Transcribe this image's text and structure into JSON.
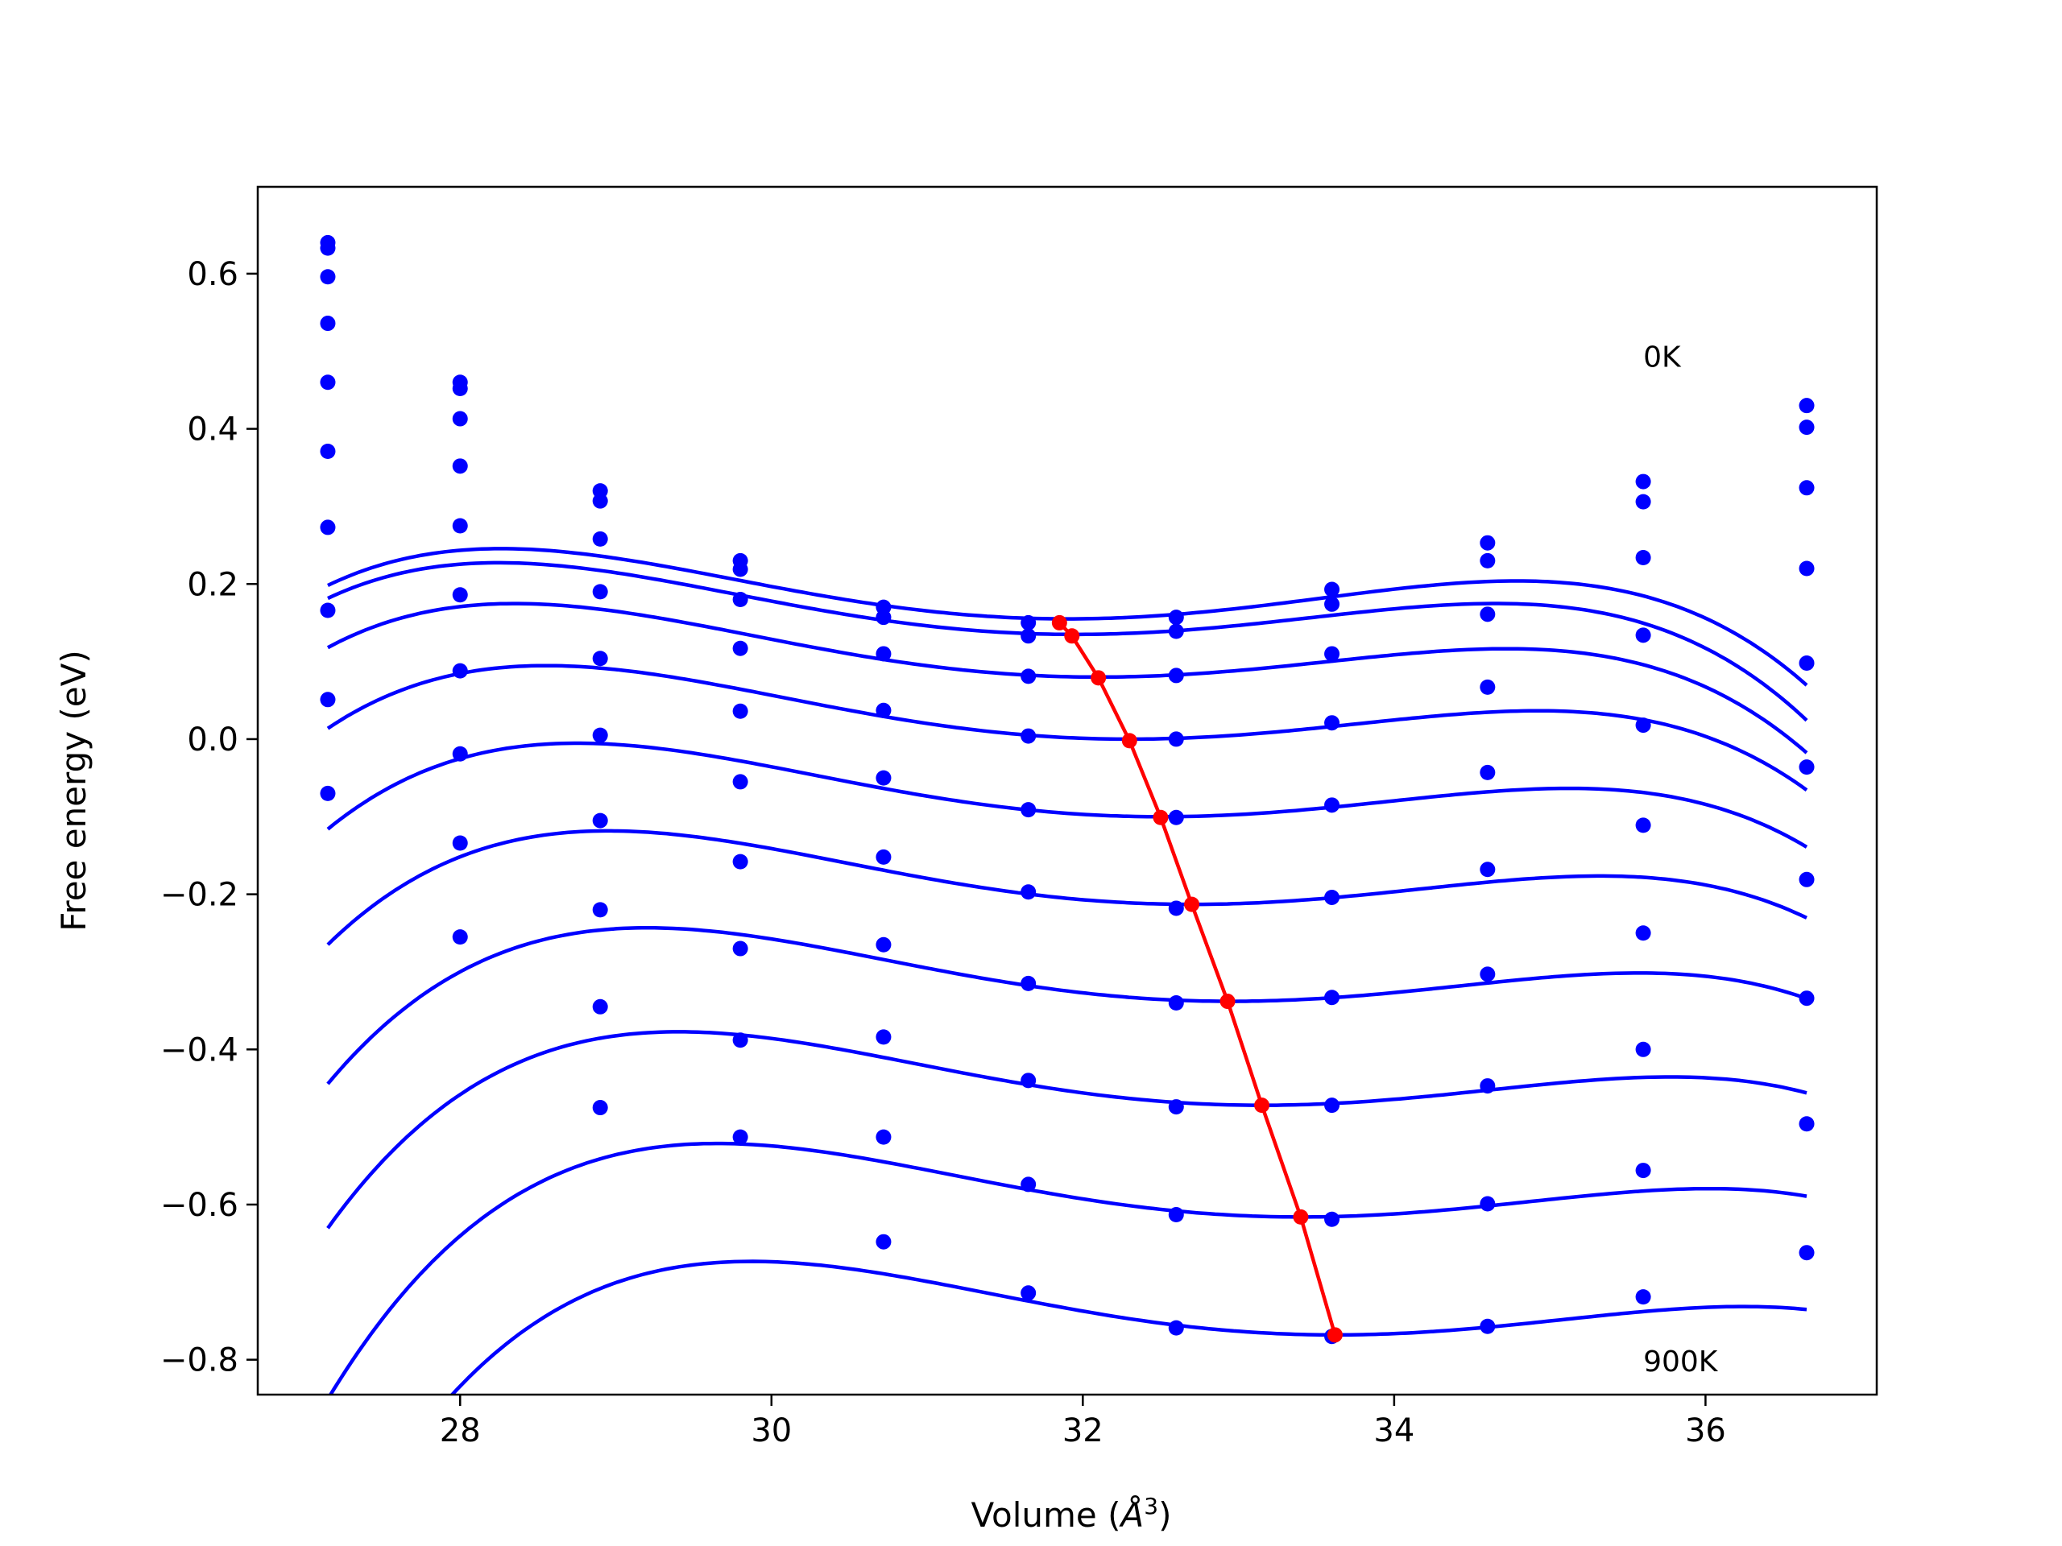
{
  "chart_data": {
    "type": "scatter",
    "title": "",
    "xlabel": "Volume",
    "xlabel_unit": "Å",
    "xlabel_exponent": "3",
    "ylabel": "Free energy (eV)",
    "xlim": [
      26.7,
      37.1
    ],
    "ylim": [
      -0.845,
      0.712
    ],
    "xticks": [
      28,
      30,
      32,
      34,
      36
    ],
    "xtick_labels": [
      "28",
      "30",
      "32",
      "34",
      "36"
    ],
    "yticks": [
      0.6,
      0.4,
      0.2,
      0.0,
      -0.2,
      -0.4,
      -0.6,
      -0.8
    ],
    "ytick_labels": [
      "0.6",
      "0.4",
      "0.2",
      "0.0",
      "−0.2",
      "−0.4",
      "−0.6",
      "−0.8"
    ],
    "grid": false,
    "annotations": [
      {
        "text": "0K",
        "x": 35.6,
        "y": 0.48
      },
      {
        "text": "900K",
        "x": 35.6,
        "y": -0.815
      }
    ],
    "colors": {
      "series": "#0000ff",
      "minima": "#ff0000"
    },
    "x": [
      27.15,
      28.0,
      28.9,
      29.8,
      30.72,
      31.65,
      32.6,
      33.6,
      34.6,
      35.6,
      36.65
    ],
    "series": [
      {
        "values": [
          0.64,
          0.46,
          0.32,
          0.23,
          0.17,
          0.15,
          0.157,
          0.193,
          0.253,
          0.332,
          0.43
        ],
        "fit": [
          0.155,
          31.9,
          0.0126,
          -0.0006,
          -0.0006
        ]
      },
      {
        "values": [
          0.633,
          0.452,
          0.307,
          0.219,
          0.157,
          0.133,
          0.139,
          0.174,
          0.23,
          0.306,
          0.402
        ],
        "fit": [
          0.135,
          31.95,
          0.012,
          -0.0008,
          -0.0006
        ]
      },
      {
        "values": [
          0.596,
          0.413,
          0.258,
          0.18,
          0.11,
          0.081,
          0.082,
          0.11,
          0.161,
          0.234,
          0.324
        ],
        "fit": [
          0.08,
          32.1,
          0.0118,
          -0.0009,
          -0.0006
        ]
      },
      {
        "values": [
          0.536,
          0.352,
          0.19,
          0.117,
          0.037,
          0.004,
          0.0,
          0.021,
          0.067,
          0.134,
          0.22
        ],
        "fit": [
          0.0,
          32.3,
          0.0118,
          -0.0009,
          -0.0006
        ]
      },
      {
        "values": [
          0.46,
          0.275,
          0.104,
          0.036,
          -0.05,
          -0.091,
          -0.101,
          -0.085,
          -0.043,
          0.018,
          0.098
        ],
        "fit": [
          -0.1,
          32.5,
          0.0118,
          -0.0009,
          -0.0006
        ]
      },
      {
        "values": [
          0.371,
          0.186,
          0.005,
          -0.055,
          -0.152,
          -0.197,
          -0.218,
          -0.204,
          -0.168,
          -0.111,
          -0.036
        ],
        "fit": [
          -0.213,
          32.7,
          0.0118,
          -0.0009,
          -0.0006
        ]
      },
      {
        "values": [
          0.273,
          0.088,
          -0.105,
          -0.158,
          -0.265,
          -0.315,
          -0.34,
          -0.333,
          -0.303,
          -0.25,
          -0.181
        ],
        "fit": [
          -0.338,
          32.95,
          0.0118,
          -0.0009,
          -0.0006
        ]
      },
      {
        "values": [
          0.166,
          -0.019,
          -0.22,
          -0.27,
          -0.384,
          -0.44,
          -0.474,
          -0.472,
          -0.447,
          -0.4,
          -0.334
        ],
        "fit": [
          -0.472,
          33.15,
          0.0118,
          -0.0009,
          -0.0006
        ]
      },
      {
        "values": [
          0.051,
          -0.134,
          -0.345,
          -0.388,
          -0.513,
          -0.574,
          -0.613,
          -0.619,
          -0.599,
          -0.556,
          -0.496
        ],
        "fit": [
          -0.616,
          33.4,
          0.0118,
          -0.0009,
          -0.0006
        ]
      },
      {
        "values": [
          -0.07,
          -0.255,
          -0.475,
          -0.513,
          -0.648,
          -0.714,
          -0.759,
          -0.77,
          -0.757,
          -0.719,
          -0.662
        ],
        "fit": [
          -0.768,
          33.62,
          0.0118,
          -0.0009,
          -0.0006
        ]
      }
    ],
    "minima": {
      "x": [
        31.85,
        31.93,
        32.1,
        32.3,
        32.5,
        32.7,
        32.93,
        33.15,
        33.4,
        33.62
      ],
      "y": [
        0.15,
        0.133,
        0.079,
        -0.002,
        -0.101,
        -0.213,
        -0.338,
        -0.472,
        -0.616,
        -0.768
      ]
    }
  }
}
